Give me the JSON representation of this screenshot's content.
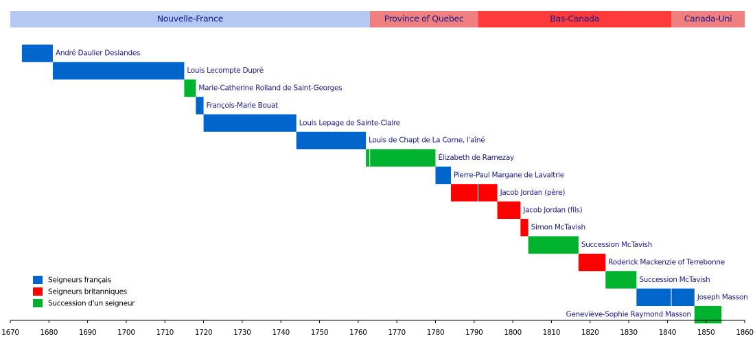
{
  "chart_data": {
    "type": "timeline",
    "xlim": [
      1670,
      1860
    ],
    "xticks": [
      1670,
      1680,
      1690,
      1700,
      1710,
      1720,
      1730,
      1740,
      1750,
      1760,
      1770,
      1780,
      1790,
      1800,
      1810,
      1820,
      1830,
      1840,
      1850,
      1860
    ],
    "eras": [
      {
        "label": "Nouvelle-France",
        "start": 1670,
        "end": 1763,
        "color": "#b4c8f4"
      },
      {
        "label": "Province of Quebec",
        "start": 1763,
        "end": 1791,
        "color": "#f08080"
      },
      {
        "label": "Bas-Canada",
        "start": 1791,
        "end": 1841,
        "color": "#ff3a3a"
      },
      {
        "label": "Canada-Uni",
        "start": 1841,
        "end": 1860,
        "color": "#f08080"
      }
    ],
    "tasks": [
      {
        "label": "André Daulier Deslandes",
        "start": 1673,
        "end": 1681,
        "color": "#0066cc"
      },
      {
        "label": "Louis Lecompte Dupré",
        "start": 1681,
        "end": 1715,
        "color": "#0066cc"
      },
      {
        "label": "Marie-Catherine Rolland de Saint-Georges",
        "start": 1715,
        "end": 1718,
        "color": "#00b22d"
      },
      {
        "label": "François-Marie Bouat",
        "start": 1718,
        "end": 1720,
        "color": "#0066cc"
      },
      {
        "label": "Louis Lepage de Sainte-Claire",
        "start": 1720,
        "end": 1744,
        "color": "#0066cc"
      },
      {
        "label": "Louis de Chapt de La Corne, l'aîné",
        "start": 1744,
        "end": 1762,
        "color": "#0066cc"
      },
      {
        "label": "Élizabeth de Ramezay",
        "start": 1762,
        "end": 1780,
        "color": "#00b22d"
      },
      {
        "label": "Pierre-Paul Margane de Lavaltrie",
        "start": 1780,
        "end": 1784,
        "color": "#0066cc"
      },
      {
        "label": "Jacob Jordan (père)",
        "start": 1784,
        "end": 1796,
        "color": "#ff0000"
      },
      {
        "label": "Jacob Jordan (fils)",
        "start": 1796,
        "end": 1802,
        "color": "#ff0000"
      },
      {
        "label": "Simon McTavish",
        "start": 1802,
        "end": 1804,
        "color": "#ff0000"
      },
      {
        "label": "Succession McTavish",
        "start": 1804,
        "end": 1817,
        "color": "#00b22d"
      },
      {
        "label": "Roderick Mackenzie of Terrebonne",
        "start": 1817,
        "end": 1824,
        "color": "#ff0000"
      },
      {
        "label": "Succession McTavish",
        "start": 1824,
        "end": 1832,
        "color": "#00b22d"
      },
      {
        "label": "Joseph Masson",
        "start": 1832,
        "end": 1847,
        "color": "#0066cc"
      },
      {
        "label": "Geneviève-Sophie Raymond Masson",
        "start": 1847,
        "end": 1854,
        "color": "#00b22d"
      }
    ],
    "legend": [
      {
        "label": "Seigneurs français",
        "color": "#0066cc"
      },
      {
        "label": "Seigneurs britanniques",
        "color": "#ff0000"
      },
      {
        "label": "Succession d'un seigneur",
        "color": "#00b22d"
      }
    ]
  }
}
